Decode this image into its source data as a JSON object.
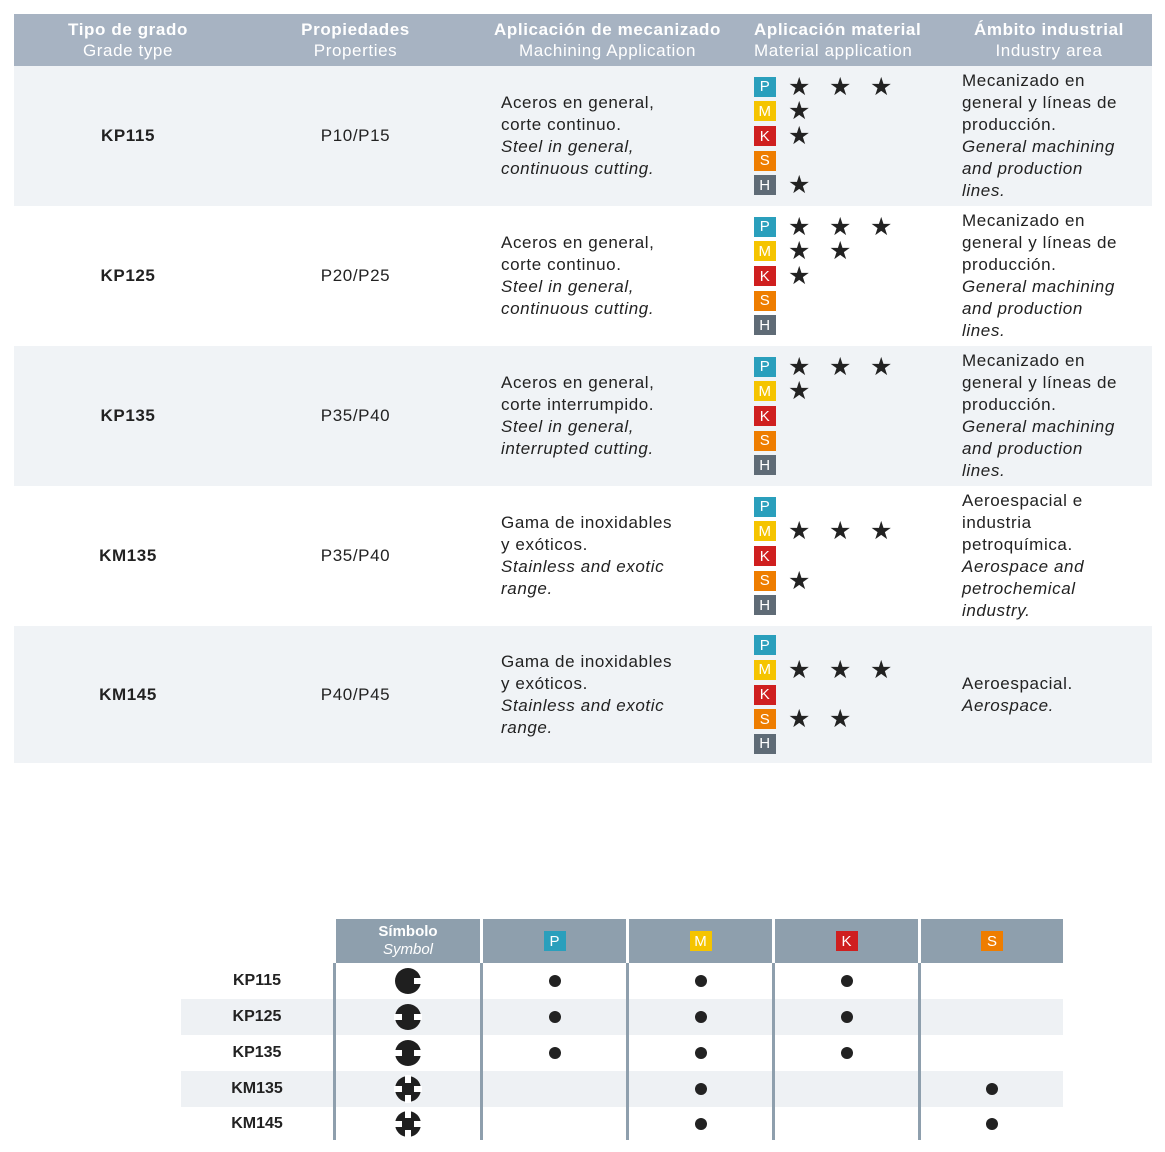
{
  "header": {
    "grade_es": "Tipo de grado",
    "grade_en": "Grade type",
    "prop_es": "Propiedades",
    "prop_en": "Properties",
    "mach_es": "Aplicación de mecanizado",
    "mach_en": "Machining Application",
    "mat_es": "Aplicación material",
    "mat_en": "Material application",
    "ind_es": "Ámbito industrial",
    "ind_en": "Industry area"
  },
  "material_labels": [
    "P",
    "M",
    "K",
    "S",
    "H"
  ],
  "colors": {
    "P": "#2a9fbc",
    "M": "#f5c400",
    "K": "#cf1f1f",
    "S": "#ee7d00",
    "H": "#5f6b76",
    "header": "#a7b3c2"
  },
  "grades": [
    {
      "code": "KP115",
      "prop": "P10/P15",
      "mach": [
        "Aceros en general,",
        "corte continuo."
      ],
      "mach_en": [
        "Steel in general,",
        "continuous cutting."
      ],
      "stars": [
        3,
        1,
        1,
        0,
        1
      ],
      "area": [
        "Mecanizado en",
        "general y líneas de",
        "producción."
      ],
      "area_en": [
        "General machining",
        "and production",
        "lines."
      ]
    },
    {
      "code": "KP125",
      "prop": "P20/P25",
      "mach": [
        "Aceros en general,",
        "corte continuo."
      ],
      "mach_en": [
        "Steel in general,",
        "continuous cutting."
      ],
      "stars": [
        3,
        2,
        1,
        0,
        0
      ],
      "area": [
        "Mecanizado en",
        "general y líneas de",
        "producción."
      ],
      "area_en": [
        "General machining",
        "and production",
        "lines."
      ]
    },
    {
      "code": "KP135",
      "prop": "P35/P40",
      "mach": [
        "Aceros en general,",
        "corte interrumpido."
      ],
      "mach_en": [
        "Steel in general,",
        "interrupted cutting."
      ],
      "stars": [
        3,
        1,
        0,
        0,
        0
      ],
      "area": [
        "Mecanizado en",
        "general y líneas de",
        "producción."
      ],
      "area_en": [
        "General machining",
        "and production",
        "lines."
      ]
    },
    {
      "code": "KM135",
      "prop": "P35/P40",
      "mach": [
        "Gama de inoxidables",
        "y exóticos."
      ],
      "mach_en": [
        "Stainless and exotic",
        "range."
      ],
      "stars": [
        0,
        3,
        0,
        1,
        0
      ],
      "area": [
        "Aeroespacial e",
        "industria",
        "petroquímica."
      ],
      "area_en": [
        "Aerospace and",
        "petrochemical",
        "industry."
      ]
    },
    {
      "code": "KM145",
      "prop": "P40/P45",
      "mach": [
        "Gama de inoxidables",
        "y exóticos."
      ],
      "mach_en": [
        "Stainless and exotic",
        "range."
      ],
      "stars": [
        0,
        3,
        0,
        2,
        0
      ],
      "area": [
        "Aeroespacial."
      ],
      "area_en": [
        "Aerospace."
      ]
    }
  ],
  "symbol_table": {
    "symbol_es": "Símbolo",
    "symbol_en": "Symbol",
    "columns": [
      "P",
      "M",
      "K",
      "S"
    ],
    "rows": [
      {
        "code": "KP115",
        "notches": 1,
        "marks": [
          true,
          true,
          true,
          false
        ]
      },
      {
        "code": "KP125",
        "notches": 2,
        "marks": [
          true,
          true,
          true,
          false
        ]
      },
      {
        "code": "KP135",
        "notches": 2,
        "marks": [
          true,
          true,
          true,
          false
        ]
      },
      {
        "code": "KM135",
        "notches": 4,
        "marks": [
          false,
          true,
          false,
          true
        ]
      },
      {
        "code": "KM145",
        "notches": 4,
        "marks": [
          false,
          true,
          false,
          true
        ]
      }
    ]
  }
}
